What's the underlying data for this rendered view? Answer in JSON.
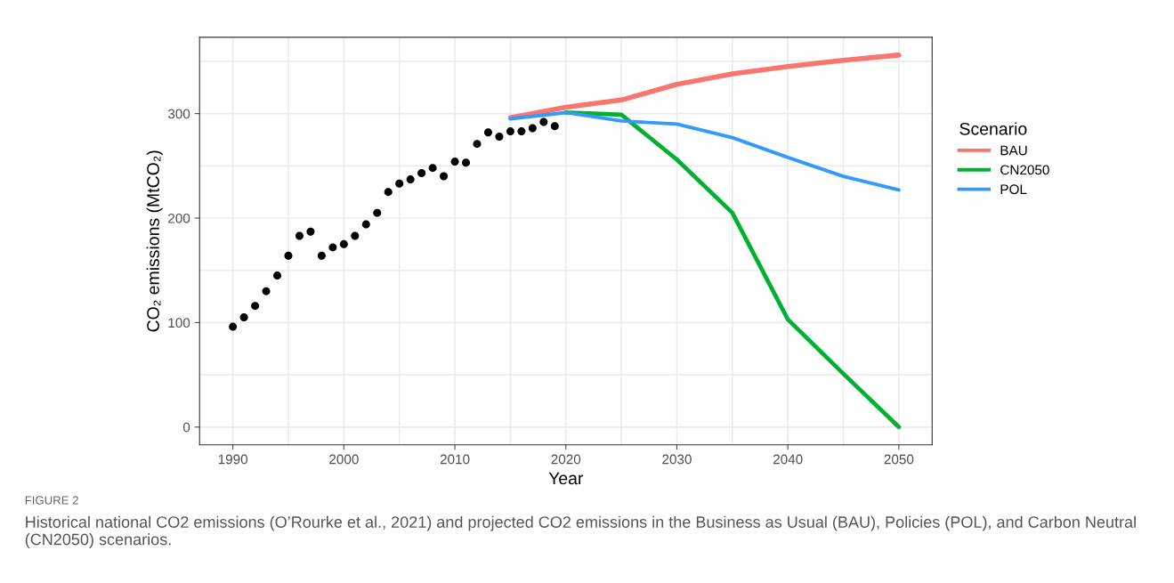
{
  "chart_data": {
    "type": "line",
    "xlabel": "Year",
    "ylabel": "CO₂ emissions (MtCO₂)",
    "legend_title": "Scenario",
    "annotations": [
      "FIGURE 2",
      "Historical national CO2 emissions (O’Rourke et al., 2021) and projected CO2 emissions in the Business as Usual (BAU), Policies (POL), and Carbon Neutral (CN2050) scenarios."
    ],
    "series": [
      {
        "type": "scatter",
        "color": "#000000",
        "marker": "circle",
        "x": [
          1990,
          1991,
          1992,
          1993,
          1994,
          1995,
          1996,
          1997,
          1998,
          1999,
          2000,
          2001,
          2002,
          2003,
          2004,
          2005,
          2006,
          2007,
          2008,
          2009,
          2010,
          2011,
          2012,
          2013,
          2014,
          2015,
          2016,
          2017,
          2018,
          2019
        ],
        "values": [
          96,
          105,
          116,
          130,
          145,
          164,
          183,
          187,
          164,
          172,
          175,
          183,
          194,
          205,
          225,
          233,
          237,
          243,
          248,
          240,
          254,
          253,
          271,
          282,
          278,
          283,
          283,
          286,
          292,
          288
        ]
      },
      {
        "name": "BAU",
        "color": "#f8766d",
        "x": [
          2015,
          2020,
          2025,
          2030,
          2035,
          2040,
          2045,
          2050
        ],
        "values": [
          296,
          306,
          313,
          328,
          338,
          345,
          351,
          356
        ]
      },
      {
        "name": "CN2050",
        "color": "#00b030",
        "x": [
          2020,
          2025,
          2030,
          2035,
          2040,
          2045,
          2050
        ],
        "values": [
          301,
          299,
          256,
          205,
          103,
          51,
          0
        ]
      },
      {
        "name": "POL",
        "color": "#3399ff",
        "x": [
          2015,
          2020,
          2025,
          2030,
          2035,
          2040,
          2045,
          2050
        ],
        "values": [
          295,
          301,
          293,
          290,
          277,
          258,
          240,
          227
        ]
      }
    ],
    "xlim": [
      1987,
      2053
    ],
    "ylim": [
      -17,
      373
    ],
    "xticks": [
      1990,
      {
        "value": 1995,
        "label": null
      },
      2000,
      {
        "value": 2005,
        "label": null
      },
      2010,
      {
        "value": 2015,
        "label": null
      },
      2020,
      {
        "value": 2025,
        "label": null
      },
      2030,
      {
        "value": 2035,
        "label": null
      },
      2040,
      {
        "value": 2045,
        "label": null
      },
      2050
    ],
    "yticks": [
      0,
      {
        "value": 50,
        "label": null
      },
      100,
      {
        "value": 150,
        "label": null
      },
      200,
      {
        "value": 250,
        "label": null
      },
      300,
      {
        "value": 350,
        "label": null
      }
    ],
    "grid": true,
    "legend": "right",
    "line_style": "solid"
  }
}
